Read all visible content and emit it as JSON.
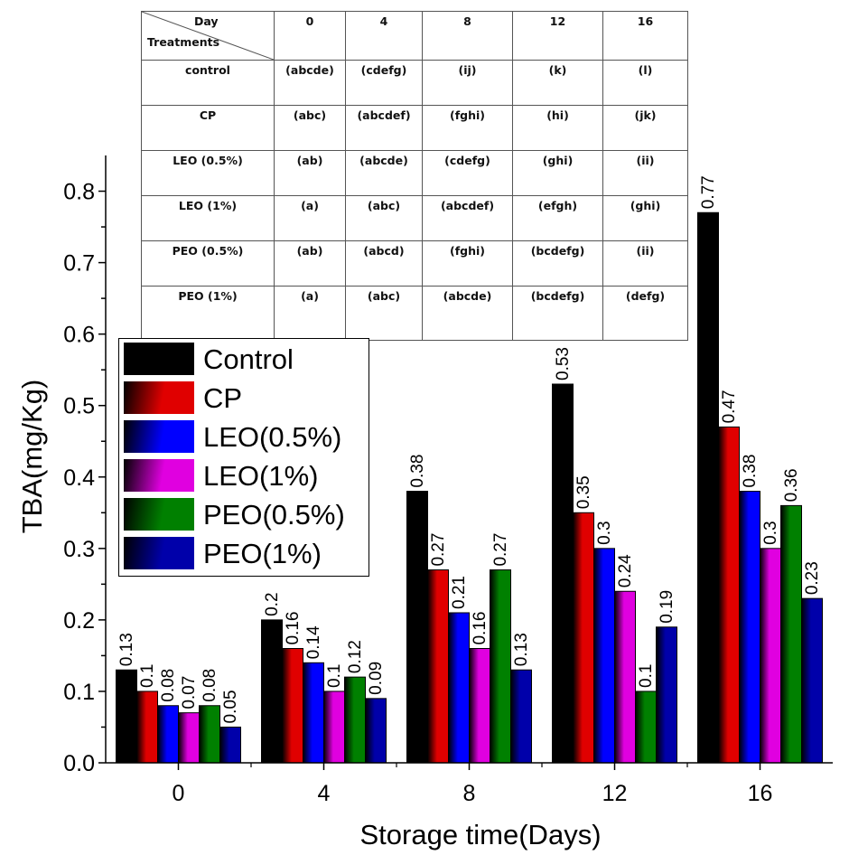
{
  "chart_data": {
    "type": "bar",
    "xlabel": "Storage time(Days)",
    "ylabel": "TBA(mg/Kg)",
    "ylim": [
      0,
      0.85
    ],
    "yticks": [
      "0.0",
      "0.1",
      "0.2",
      "0.3",
      "0.4",
      "0.5",
      "0.6",
      "0.7",
      "0.8"
    ],
    "categories": [
      "0",
      "4",
      "8",
      "12",
      "16"
    ],
    "series": [
      {
        "name": "Control",
        "color": "#000000",
        "values": [
          0.13,
          0.2,
          0.38,
          0.53,
          0.77
        ],
        "labels": [
          "0.13",
          "0.2",
          "0.38",
          "0.53",
          "0.77"
        ]
      },
      {
        "name": "CP",
        "color": "#e00000",
        "values": [
          0.1,
          0.16,
          0.27,
          0.35,
          0.47
        ],
        "labels": [
          "0.1",
          "0.16",
          "0.27",
          "0.35",
          "0.47"
        ]
      },
      {
        "name": "LEO(0.5%)",
        "color": "#0000ff",
        "values": [
          0.08,
          0.14,
          0.21,
          0.3,
          0.38
        ],
        "labels": [
          "0.08",
          "0.14",
          "0.21",
          "0.3",
          "0.38"
        ]
      },
      {
        "name": "LEO(1%)",
        "color": "#e000e0",
        "values": [
          0.07,
          0.1,
          0.16,
          0.24,
          0.3
        ],
        "labels": [
          "0.07",
          "0.1",
          "0.16",
          "0.24",
          "0.3"
        ]
      },
      {
        "name": "PEO(0.5%)",
        "color": "#008000",
        "values": [
          0.08,
          0.12,
          0.27,
          0.1,
          0.36
        ],
        "labels": [
          "0.08",
          "0.12",
          "0.27",
          "0.1",
          "0.36"
        ]
      },
      {
        "name": "PEO(1%)",
        "color": "#0000aa",
        "values": [
          0.05,
          0.09,
          0.13,
          0.19,
          0.23
        ],
        "labels": [
          "0.05",
          "0.09",
          "0.13",
          "0.19",
          "0.23"
        ]
      }
    ],
    "legend_position": "left"
  },
  "table": {
    "corner_top": "Day",
    "corner_bottom": "Treatments",
    "columns": [
      "0",
      "4",
      "8",
      "12",
      "16"
    ],
    "rows": [
      {
        "treatment": "control",
        "cells": [
          "(abcde)",
          "(cdefg)",
          "(ij)",
          "(k)",
          "(l)"
        ]
      },
      {
        "treatment": "CP",
        "cells": [
          "(abc)",
          "(abcdef)",
          "(fghi)",
          "(hi)",
          "(jk)"
        ]
      },
      {
        "treatment": "LEO (0.5%)",
        "cells": [
          "(ab)",
          "(abcde)",
          "(cdefg)",
          "(ghi)",
          "(ii)"
        ]
      },
      {
        "treatment": "LEO (1%)",
        "cells": [
          "(a)",
          "(abc)",
          "(abcdef)",
          "(efgh)",
          "(ghi)"
        ]
      },
      {
        "treatment": "PEO (0.5%)",
        "cells": [
          "(ab)",
          "(abcd)",
          "(fghi)",
          "(bcdefg)",
          "(ii)"
        ]
      },
      {
        "treatment": "PEO (1%)",
        "cells": [
          "(a)",
          "(abc)",
          "(abcde)",
          "(bcdefg)",
          "(defg)"
        ]
      }
    ]
  }
}
